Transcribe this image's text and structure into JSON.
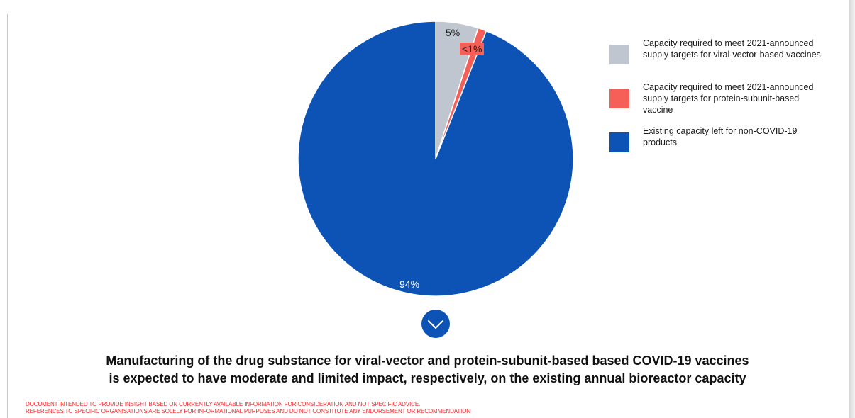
{
  "chart_data": {
    "type": "pie",
    "slices": [
      {
        "label": "Capacity required to meet 2021-announced supply targets for viral-vector-based vaccines",
        "value": 5,
        "display": "5%",
        "color": "#c0c6d0"
      },
      {
        "label": "Capacity required to meet 2021-announced supply targets for protein-subunit-based vaccine",
        "value": 1,
        "display": "<1%",
        "color": "#f55f57"
      },
      {
        "label": "Existing capacity left for non-COVID-19 products",
        "value": 94,
        "display": "94%",
        "color": "#0d53b5"
      }
    ],
    "legend": {
      "placement": "right",
      "items": [
        {
          "text": "Capacity required to meet 2021-announced supply targets for viral-vector-based vaccines",
          "color": "#c0c6d0"
        },
        {
          "text": "Capacity required to meet 2021-announced supply targets for protein-subunit-based vaccine",
          "color": "#f55f57"
        },
        {
          "text": "Existing capacity left for non-COVID-19 products",
          "color": "#0d53b5"
        }
      ]
    }
  },
  "caption": {
    "line1": "Manufacturing of the drug substance for viral-vector and protein-subunit-based based COVID-19 vaccines",
    "line2": "is expected to have moderate and limited impact, respectively, on the existing annual bioreactor capacity"
  },
  "disclaimer": {
    "line1": "DOCUMENT INTENDED TO PROVIDE INSIGHT BASED ON CURRENTLY AVAILABLE INFORMATION FOR CONSIDERATION AND NOT SPECIFIC ADVICE.",
    "line2": "REFERENCES TO SPECIFIC ORGANISATIONS ARE SOLELY FOR INFORMATIONAL PURPOSES AND DO NOT CONSTITUTE ANY ENDORSEMENT OR RECOMMENDATION"
  },
  "icons": {
    "expand": "chevron-down-icon"
  },
  "colors": {
    "accent": "#0d53b5",
    "disclaimer": "#ee2b2b"
  }
}
